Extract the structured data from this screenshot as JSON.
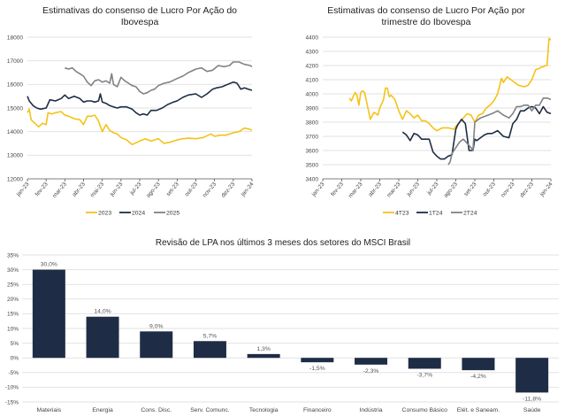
{
  "chart_data": [
    {
      "type": "line",
      "title_line1": "Estimativas do consenso de Lucro Por Ação do",
      "title_line2": "Ibovespa",
      "xlabel": "",
      "ylabel": "",
      "ylim": [
        12000,
        18000
      ],
      "yticks": [
        "12000",
        "13000",
        "14000",
        "15000",
        "16000",
        "17000",
        "18000"
      ],
      "xticks": [
        "jan-23",
        "fev-23",
        "mar-23",
        "abr-23",
        "mai-23",
        "jun-23",
        "jul-23",
        "ago-23",
        "set-23",
        "out-23",
        "nov-23",
        "dez-23",
        "jan-24"
      ],
      "legend_position": "bottom",
      "series": [
        {
          "name": "2023",
          "color": "#F5C218",
          "x": [
            0,
            0.1,
            0.2,
            0.4,
            0.6,
            0.8,
            1.0,
            1.1,
            1.3,
            1.5,
            1.8,
            2.0,
            2.2,
            2.5,
            2.8,
            3.0,
            3.2,
            3.4,
            3.6,
            3.8,
            4.0,
            4.2,
            4.4,
            4.6,
            4.8,
            5.0,
            5.3,
            5.6,
            6.0,
            6.3,
            6.6,
            6.8,
            7.0,
            7.3,
            7.6,
            8.0,
            8.3,
            8.6,
            9.0,
            9.4,
            9.8,
            10.0,
            10.3,
            10.6,
            11.0,
            11.3,
            11.6,
            11.9,
            12.0
          ],
          "y": [
            14800,
            14950,
            14500,
            14350,
            14200,
            14350,
            14300,
            14800,
            14750,
            14800,
            14850,
            14700,
            14650,
            14550,
            14500,
            14300,
            14650,
            14650,
            14700,
            14450,
            14000,
            14300,
            14050,
            13950,
            13900,
            13750,
            13650,
            13450,
            13600,
            13700,
            13600,
            13650,
            13700,
            13500,
            13550,
            13650,
            13700,
            13720,
            13700,
            13750,
            13900,
            13800,
            13850,
            13850,
            13950,
            14000,
            14150,
            14100,
            14050
          ]
        },
        {
          "name": "2024",
          "color": "#1E2D45",
          "x": [
            0,
            0.1,
            0.3,
            0.5,
            0.7,
            1.0,
            1.2,
            1.5,
            1.8,
            2.0,
            2.2,
            2.5,
            2.8,
            3.0,
            3.2,
            3.4,
            3.6,
            3.8,
            3.9,
            4.0,
            4.2,
            4.4,
            4.6,
            4.8,
            5.0,
            5.3,
            5.6,
            5.8,
            6.0,
            6.2,
            6.4,
            6.6,
            6.9,
            7.2,
            7.5,
            7.8,
            8.0,
            8.3,
            8.6,
            9.0,
            9.3,
            9.6,
            9.9,
            10.1,
            10.4,
            10.7,
            11.0,
            11.2,
            11.4,
            11.6,
            11.8,
            12.0
          ],
          "y": [
            15500,
            15300,
            15100,
            15000,
            14950,
            15000,
            15350,
            15300,
            15400,
            15550,
            15400,
            15500,
            15400,
            15250,
            15300,
            15300,
            15250,
            15300,
            15600,
            15250,
            15200,
            15100,
            15050,
            15000,
            15050,
            15050,
            14950,
            14800,
            14700,
            14750,
            14700,
            14900,
            14900,
            15000,
            15150,
            15250,
            15300,
            15450,
            15550,
            15600,
            15450,
            15600,
            15800,
            15850,
            15900,
            16000,
            16100,
            16050,
            15800,
            15850,
            15800,
            15750
          ]
        },
        {
          "name": "2025",
          "color": "#808285",
          "x": [
            2.0,
            2.2,
            2.4,
            2.6,
            2.8,
            3.0,
            3.2,
            3.4,
            3.6,
            3.8,
            4.0,
            4.2,
            4.4,
            4.5,
            4.6,
            4.8,
            5.0,
            5.2,
            5.4,
            5.6,
            5.8,
            6.0,
            6.2,
            6.4,
            6.6,
            6.8,
            7.0,
            7.3,
            7.6,
            8.0,
            8.3,
            8.6,
            9.0,
            9.3,
            9.6,
            9.9,
            10.2,
            10.5,
            10.8,
            11.0,
            11.3,
            11.6,
            11.9,
            12.0
          ],
          "y": [
            16700,
            16650,
            16700,
            16550,
            16450,
            16350,
            16100,
            15950,
            16150,
            16200,
            16100,
            16150,
            16050,
            16450,
            16000,
            15900,
            16300,
            16150,
            16050,
            15950,
            15900,
            15700,
            15600,
            15650,
            15750,
            15800,
            15950,
            16050,
            16100,
            16250,
            16350,
            16500,
            16650,
            16700,
            16550,
            16600,
            16800,
            16750,
            16800,
            16950,
            16950,
            16850,
            16800,
            16750
          ]
        }
      ]
    },
    {
      "type": "line",
      "title_line1": "Estimativas do consenso de Lucro Por Ação por",
      "title_line2": "trimestre do Ibovespa",
      "xlabel": "",
      "ylabel": "",
      "ylim": [
        3400,
        4400
      ],
      "yticks": [
        "3400",
        "3500",
        "3600",
        "3700",
        "3800",
        "3900",
        "4000",
        "4100",
        "4200",
        "4300",
        "4400"
      ],
      "xticks": [
        "jan-23",
        "fev-23",
        "mar-23",
        "abr-23",
        "mai-23",
        "jun-23",
        "jul-23",
        "ago-23",
        "set-23",
        "out-23",
        "nov-23",
        "dez-23",
        "jan-24"
      ],
      "legend_position": "bottom",
      "series": [
        {
          "name": "4T23",
          "color": "#F5C218",
          "x": [
            1.4,
            1.5,
            1.6,
            1.7,
            1.8,
            1.9,
            2.0,
            2.1,
            2.2,
            2.3,
            2.5,
            2.7,
            2.9,
            3.0,
            3.2,
            3.3,
            3.4,
            3.5,
            3.6,
            3.8,
            4.0,
            4.2,
            4.4,
            4.6,
            4.8,
            5.0,
            5.2,
            5.4,
            5.6,
            5.8,
            6.0,
            6.3,
            6.6,
            6.9,
            7.0,
            7.2,
            7.4,
            7.6,
            7.8,
            8.0,
            8.2,
            8.4,
            8.6,
            8.8,
            9.0,
            9.2,
            9.4,
            9.5,
            9.7,
            9.9,
            10.1,
            10.3,
            10.6,
            10.8,
            11.0,
            11.2,
            11.4,
            11.5,
            11.6,
            11.7,
            11.8,
            11.9,
            12.0
          ],
          "y": [
            3970,
            3950,
            3980,
            4010,
            3990,
            3920,
            4010,
            4020,
            4010,
            3950,
            3820,
            3870,
            3850,
            3900,
            3960,
            4040,
            4040,
            3980,
            3990,
            3960,
            3880,
            3820,
            3880,
            3860,
            3830,
            3850,
            3810,
            3810,
            3790,
            3760,
            3740,
            3760,
            3760,
            3750,
            3770,
            3800,
            3830,
            3860,
            3850,
            3800,
            3850,
            3860,
            3900,
            3920,
            3950,
            4000,
            4110,
            4080,
            4120,
            4100,
            4080,
            4060,
            4050,
            4060,
            4100,
            4170,
            4180,
            4190,
            4190,
            4200,
            4200,
            4390,
            4380
          ]
        },
        {
          "name": "1T24",
          "color": "#1E2D45",
          "x": [
            4.2,
            4.4,
            4.6,
            4.8,
            5.0,
            5.2,
            5.4,
            5.6,
            5.8,
            6.0,
            6.2,
            6.4,
            6.6,
            6.8,
            7.0,
            7.1,
            7.3,
            7.5,
            7.7,
            7.9,
            8.0,
            8.1,
            8.3,
            8.5,
            8.7,
            8.9,
            9.2,
            9.5,
            9.8,
            10.0,
            10.2,
            10.4,
            10.6,
            10.8,
            11.0,
            11.2,
            11.4,
            11.6,
            11.8,
            12.0
          ],
          "y": [
            3730,
            3710,
            3670,
            3720,
            3710,
            3680,
            3680,
            3680,
            3590,
            3560,
            3540,
            3540,
            3560,
            3570,
            3750,
            3780,
            3820,
            3790,
            3600,
            3600,
            3680,
            3670,
            3690,
            3710,
            3720,
            3720,
            3740,
            3700,
            3690,
            3790,
            3820,
            3880,
            3880,
            3900,
            3910,
            3900,
            3860,
            3910,
            3870,
            3860
          ]
        },
        {
          "name": "2T24",
          "color": "#808285",
          "x": [
            6.6,
            6.7,
            6.8,
            6.9,
            7.0,
            7.2,
            7.4,
            7.6,
            7.8,
            7.9,
            8.0,
            8.1,
            8.3,
            8.5,
            8.7,
            8.9,
            9.2,
            9.5,
            9.8,
            10.0,
            10.2,
            10.4,
            10.6,
            10.8,
            11.0,
            11.2,
            11.4,
            11.6,
            11.8,
            12.0
          ],
          "y": [
            3500,
            3520,
            3580,
            3600,
            3620,
            3660,
            3680,
            3650,
            3620,
            3600,
            3800,
            3810,
            3830,
            3840,
            3850,
            3860,
            3880,
            3850,
            3830,
            3860,
            3910,
            3910,
            3920,
            3920,
            3880,
            3920,
            3920,
            3970,
            3970,
            3960
          ]
        }
      ]
    },
    {
      "type": "bar",
      "title": "Revisão de LPA nos últimos 3 meses dos setores do MSCI Brasil",
      "xlabel": "",
      "ylabel": "",
      "ylim": [
        -15,
        35
      ],
      "yticks": [
        "-15%",
        "-10%",
        "-5%",
        "0%",
        "5%",
        "10%",
        "15%",
        "20%",
        "25%",
        "30%",
        "35%"
      ],
      "categories": [
        "Materiais",
        "Energia",
        "Cons. Disc.",
        "Serv. Comunc.",
        "Tecnologia",
        "Financeiro",
        "Indústria",
        "Consumo Básico",
        "Elét. e Saneam.",
        "Saúde"
      ],
      "values": [
        30.0,
        14.0,
        9.0,
        5.7,
        1.3,
        -1.5,
        -2.3,
        -3.7,
        -4.2,
        -11.8
      ],
      "labels": [
        "30,0%",
        "14,0%",
        "9,0%",
        "5,7%",
        "1,3%",
        "-1,5%",
        "-2,3%",
        "-3,7%",
        "-4,2%",
        "-11,8%"
      ],
      "bar_color": "#1E2D45",
      "legend_position": "none"
    }
  ]
}
